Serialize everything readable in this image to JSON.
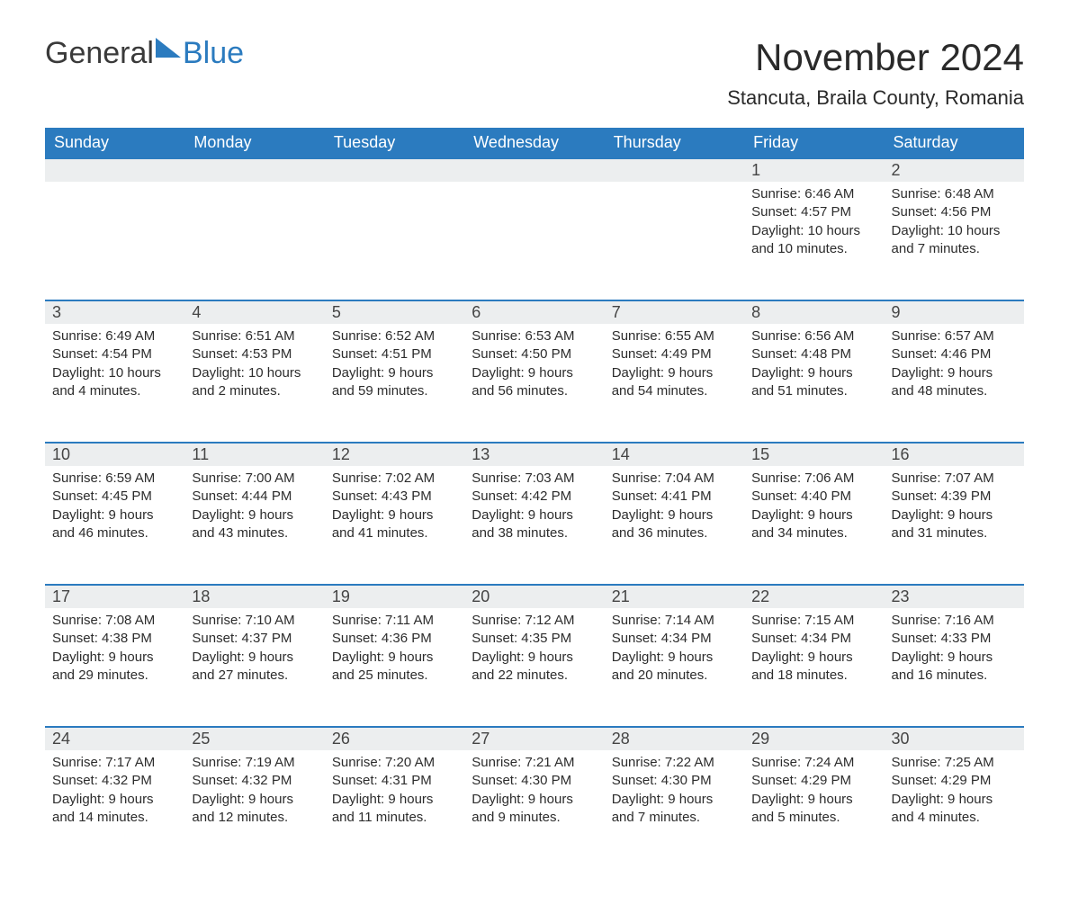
{
  "brand": {
    "general": "General",
    "blue": "Blue"
  },
  "title": "November 2024",
  "location": "Stancuta, Braila County, Romania",
  "colors": {
    "header_bg": "#2b7bbf",
    "header_text": "#ffffff",
    "daynum_bg": "#eceeef",
    "row_border": "#2b7bbf",
    "body_text": "#2c2c2c",
    "brand_gray": "#3a3a3a",
    "brand_blue": "#2b7bbf"
  },
  "weekdays": [
    "Sunday",
    "Monday",
    "Tuesday",
    "Wednesday",
    "Thursday",
    "Friday",
    "Saturday"
  ],
  "cells": [
    {
      "day": "",
      "sunrise": "",
      "sunset": "",
      "daylight": ""
    },
    {
      "day": "",
      "sunrise": "",
      "sunset": "",
      "daylight": ""
    },
    {
      "day": "",
      "sunrise": "",
      "sunset": "",
      "daylight": ""
    },
    {
      "day": "",
      "sunrise": "",
      "sunset": "",
      "daylight": ""
    },
    {
      "day": "",
      "sunrise": "",
      "sunset": "",
      "daylight": ""
    },
    {
      "day": "1",
      "sunrise": "Sunrise: 6:46 AM",
      "sunset": "Sunset: 4:57 PM",
      "daylight": "Daylight: 10 hours and 10 minutes."
    },
    {
      "day": "2",
      "sunrise": "Sunrise: 6:48 AM",
      "sunset": "Sunset: 4:56 PM",
      "daylight": "Daylight: 10 hours and 7 minutes."
    },
    {
      "day": "3",
      "sunrise": "Sunrise: 6:49 AM",
      "sunset": "Sunset: 4:54 PM",
      "daylight": "Daylight: 10 hours and 4 minutes."
    },
    {
      "day": "4",
      "sunrise": "Sunrise: 6:51 AM",
      "sunset": "Sunset: 4:53 PM",
      "daylight": "Daylight: 10 hours and 2 minutes."
    },
    {
      "day": "5",
      "sunrise": "Sunrise: 6:52 AM",
      "sunset": "Sunset: 4:51 PM",
      "daylight": "Daylight: 9 hours and 59 minutes."
    },
    {
      "day": "6",
      "sunrise": "Sunrise: 6:53 AM",
      "sunset": "Sunset: 4:50 PM",
      "daylight": "Daylight: 9 hours and 56 minutes."
    },
    {
      "day": "7",
      "sunrise": "Sunrise: 6:55 AM",
      "sunset": "Sunset: 4:49 PM",
      "daylight": "Daylight: 9 hours and 54 minutes."
    },
    {
      "day": "8",
      "sunrise": "Sunrise: 6:56 AM",
      "sunset": "Sunset: 4:48 PM",
      "daylight": "Daylight: 9 hours and 51 minutes."
    },
    {
      "day": "9",
      "sunrise": "Sunrise: 6:57 AM",
      "sunset": "Sunset: 4:46 PM",
      "daylight": "Daylight: 9 hours and 48 minutes."
    },
    {
      "day": "10",
      "sunrise": "Sunrise: 6:59 AM",
      "sunset": "Sunset: 4:45 PM",
      "daylight": "Daylight: 9 hours and 46 minutes."
    },
    {
      "day": "11",
      "sunrise": "Sunrise: 7:00 AM",
      "sunset": "Sunset: 4:44 PM",
      "daylight": "Daylight: 9 hours and 43 minutes."
    },
    {
      "day": "12",
      "sunrise": "Sunrise: 7:02 AM",
      "sunset": "Sunset: 4:43 PM",
      "daylight": "Daylight: 9 hours and 41 minutes."
    },
    {
      "day": "13",
      "sunrise": "Sunrise: 7:03 AM",
      "sunset": "Sunset: 4:42 PM",
      "daylight": "Daylight: 9 hours and 38 minutes."
    },
    {
      "day": "14",
      "sunrise": "Sunrise: 7:04 AM",
      "sunset": "Sunset: 4:41 PM",
      "daylight": "Daylight: 9 hours and 36 minutes."
    },
    {
      "day": "15",
      "sunrise": "Sunrise: 7:06 AM",
      "sunset": "Sunset: 4:40 PM",
      "daylight": "Daylight: 9 hours and 34 minutes."
    },
    {
      "day": "16",
      "sunrise": "Sunrise: 7:07 AM",
      "sunset": "Sunset: 4:39 PM",
      "daylight": "Daylight: 9 hours and 31 minutes."
    },
    {
      "day": "17",
      "sunrise": "Sunrise: 7:08 AM",
      "sunset": "Sunset: 4:38 PM",
      "daylight": "Daylight: 9 hours and 29 minutes."
    },
    {
      "day": "18",
      "sunrise": "Sunrise: 7:10 AM",
      "sunset": "Sunset: 4:37 PM",
      "daylight": "Daylight: 9 hours and 27 minutes."
    },
    {
      "day": "19",
      "sunrise": "Sunrise: 7:11 AM",
      "sunset": "Sunset: 4:36 PM",
      "daylight": "Daylight: 9 hours and 25 minutes."
    },
    {
      "day": "20",
      "sunrise": "Sunrise: 7:12 AM",
      "sunset": "Sunset: 4:35 PM",
      "daylight": "Daylight: 9 hours and 22 minutes."
    },
    {
      "day": "21",
      "sunrise": "Sunrise: 7:14 AM",
      "sunset": "Sunset: 4:34 PM",
      "daylight": "Daylight: 9 hours and 20 minutes."
    },
    {
      "day": "22",
      "sunrise": "Sunrise: 7:15 AM",
      "sunset": "Sunset: 4:34 PM",
      "daylight": "Daylight: 9 hours and 18 minutes."
    },
    {
      "day": "23",
      "sunrise": "Sunrise: 7:16 AM",
      "sunset": "Sunset: 4:33 PM",
      "daylight": "Daylight: 9 hours and 16 minutes."
    },
    {
      "day": "24",
      "sunrise": "Sunrise: 7:17 AM",
      "sunset": "Sunset: 4:32 PM",
      "daylight": "Daylight: 9 hours and 14 minutes."
    },
    {
      "day": "25",
      "sunrise": "Sunrise: 7:19 AM",
      "sunset": "Sunset: 4:32 PM",
      "daylight": "Daylight: 9 hours and 12 minutes."
    },
    {
      "day": "26",
      "sunrise": "Sunrise: 7:20 AM",
      "sunset": "Sunset: 4:31 PM",
      "daylight": "Daylight: 9 hours and 11 minutes."
    },
    {
      "day": "27",
      "sunrise": "Sunrise: 7:21 AM",
      "sunset": "Sunset: 4:30 PM",
      "daylight": "Daylight: 9 hours and 9 minutes."
    },
    {
      "day": "28",
      "sunrise": "Sunrise: 7:22 AM",
      "sunset": "Sunset: 4:30 PM",
      "daylight": "Daylight: 9 hours and 7 minutes."
    },
    {
      "day": "29",
      "sunrise": "Sunrise: 7:24 AM",
      "sunset": "Sunset: 4:29 PM",
      "daylight": "Daylight: 9 hours and 5 minutes."
    },
    {
      "day": "30",
      "sunrise": "Sunrise: 7:25 AM",
      "sunset": "Sunset: 4:29 PM",
      "daylight": "Daylight: 9 hours and 4 minutes."
    }
  ]
}
